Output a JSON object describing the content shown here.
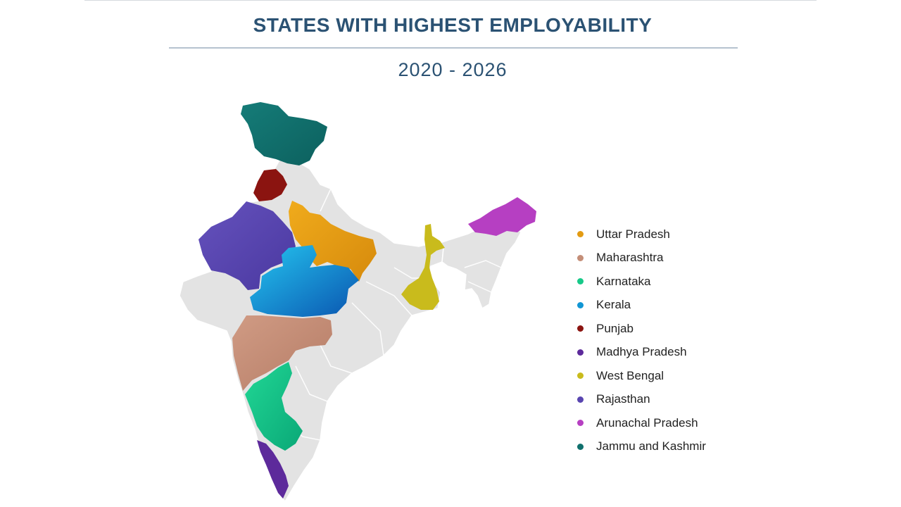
{
  "header": {
    "title": "STATES WITH HIGHEST EMPLOYABILITY",
    "subtitle": "2020 - 2026"
  },
  "map": {
    "base_color": "#e3e3e3",
    "border_color": "#ffffff"
  },
  "legend": {
    "items": [
      {
        "label": "Uttar Pradesh",
        "color": "#e39b12"
      },
      {
        "label": "Maharashtra",
        "color": "#c48e78"
      },
      {
        "label": "Karnataka",
        "color": "#17c989"
      },
      {
        "label": "Kerala",
        "color": "#1196d4"
      },
      {
        "label": "Punjab",
        "color": "#8b1410"
      },
      {
        "label": "Madhya Pradesh",
        "color": "#5d2a9b"
      },
      {
        "label": "West Bengal",
        "color": "#c9bb1c"
      },
      {
        "label": "Rajasthan",
        "color": "#5945b0"
      },
      {
        "label": "Arunachal Pradesh",
        "color": "#b63fc2"
      },
      {
        "label": "Jammu and Kashmir",
        "color": "#10706d"
      }
    ]
  }
}
